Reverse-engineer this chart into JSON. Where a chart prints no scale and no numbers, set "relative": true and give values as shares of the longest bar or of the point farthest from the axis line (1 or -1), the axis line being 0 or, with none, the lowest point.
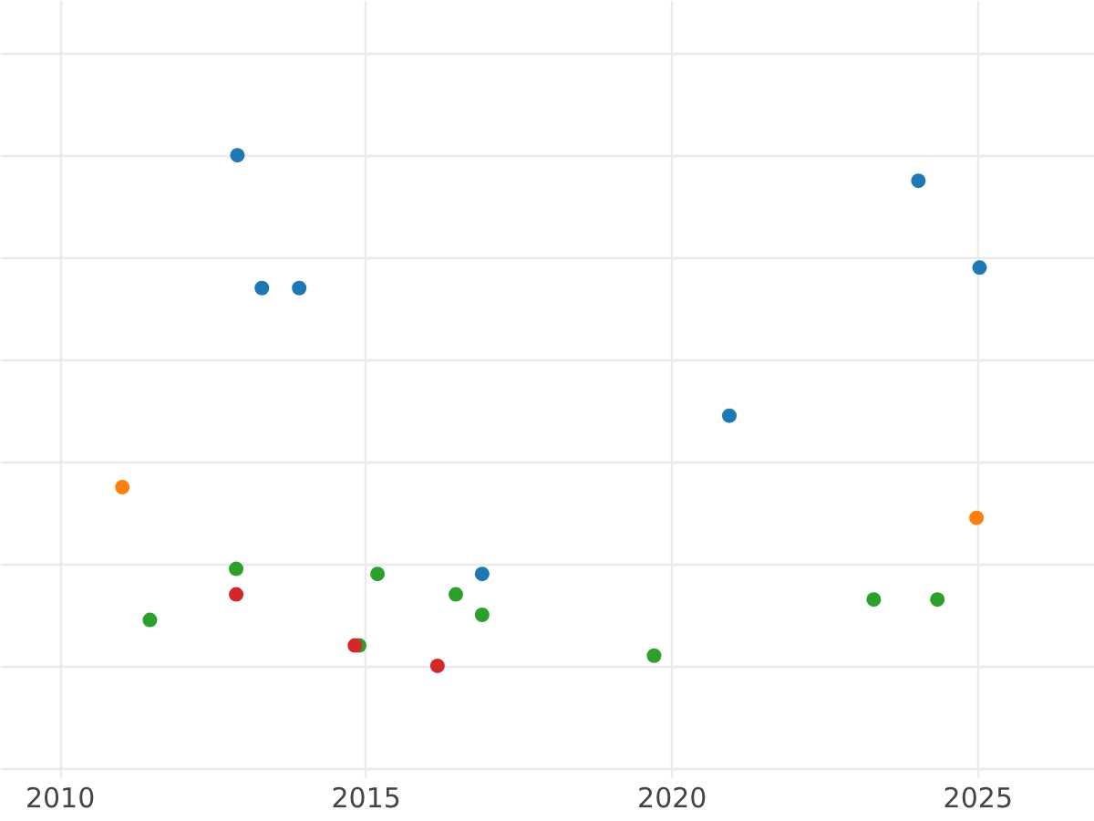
{
  "chart_data": {
    "type": "scatter",
    "relative": true,
    "grid": true,
    "xlim": [
      2009.03,
      2026.91
    ],
    "xticks": [
      2010,
      2015,
      2020,
      2025
    ],
    "series": [
      {
        "color": "#1f77b4",
        "x": [
          2012.91,
          2013.31,
          2013.92,
          2016.91,
          2020.95,
          2024.04,
          2025.04
        ],
        "values": [
          1.0,
          0.74,
          0.74,
          0.18,
          0.49,
          0.95,
          0.78
        ]
      },
      {
        "color": "#ff7f0e",
        "x": [
          2011.03,
          2024.99
        ],
        "values": [
          0.35,
          0.29
        ]
      },
      {
        "color": "#2ca02c",
        "x": [
          2011.48,
          2012.89,
          2014.9,
          2015.2,
          2016.48,
          2016.91,
          2019.72,
          2023.31,
          2024.35
        ],
        "values": [
          0.09,
          0.19,
          0.04,
          0.18,
          0.14,
          0.1,
          0.02,
          0.13,
          0.13
        ]
      },
      {
        "color": "#d62728",
        "x": [
          2012.89,
          2014.83,
          2016.18
        ],
        "values": [
          0.14,
          0.04,
          0.0
        ]
      }
    ]
  }
}
